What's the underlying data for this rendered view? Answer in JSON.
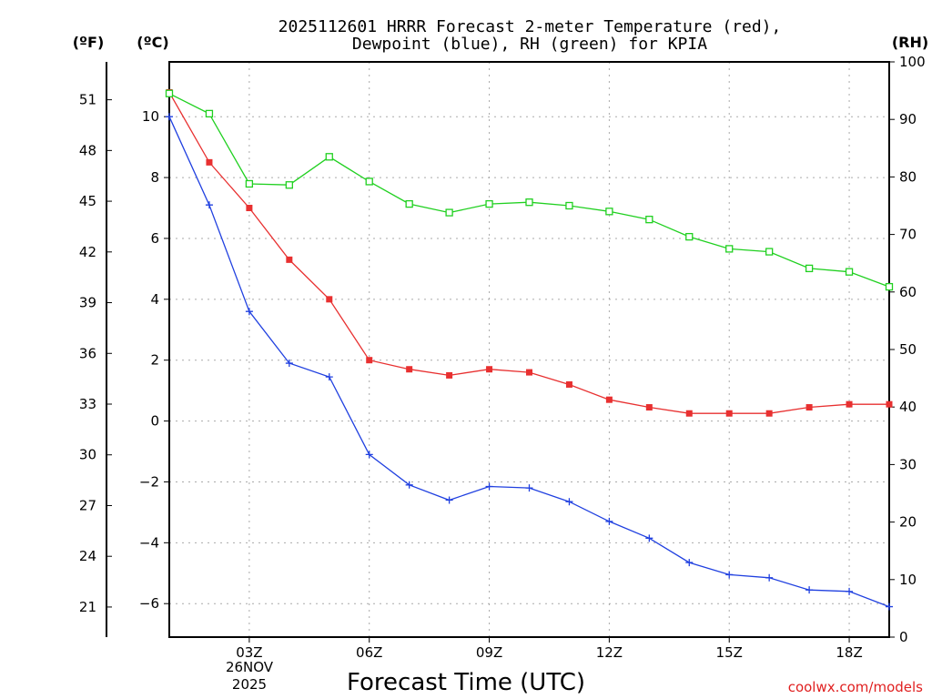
{
  "chart_data": {
    "type": "line",
    "title_line1": "2025112601 HRRR Forecast 2-meter Temperature (red),",
    "title_line2": "Dewpoint (blue), RH (green) for KPIA",
    "xlabel": "Forecast Time (UTC)",
    "date_line1": "26NOV",
    "date_line2": "2025",
    "credit": "coolwx.com/models",
    "units": {
      "fahrenheit": "(ºF)",
      "celsius": "(ºC)",
      "rh": "(RH)"
    },
    "x": [
      1,
      2,
      3,
      4,
      5,
      6,
      7,
      8,
      9,
      10,
      11,
      12,
      13,
      14,
      15,
      16,
      17,
      18,
      19
    ],
    "xlim": [
      1,
      19
    ],
    "x_ticks": [
      3,
      6,
      9,
      12,
      15,
      18
    ],
    "x_tick_labels": [
      "03Z",
      "06Z",
      "09Z",
      "12Z",
      "15Z",
      "18Z"
    ],
    "celsius_lim": [
      -7.1,
      11.8
    ],
    "celsius_ticks": [
      10,
      8,
      6,
      4,
      2,
      0,
      -2,
      -4,
      -6
    ],
    "celsius_tick_labels": [
      "10",
      "8",
      "6",
      "4",
      "2",
      "0",
      "−2",
      "−4",
      "−6"
    ],
    "fahrenheit_ticks": [
      51,
      48,
      45,
      42,
      39,
      36,
      33,
      30,
      27,
      24,
      21
    ],
    "fahrenheit_tick_labels": [
      "51",
      "48",
      "45",
      "42",
      "39",
      "36",
      "33",
      "30",
      "27",
      "24",
      "21"
    ],
    "rh_lim": [
      0,
      100
    ],
    "rh_ticks": [
      100,
      90,
      80,
      70,
      60,
      50,
      40,
      30,
      20,
      10,
      0
    ],
    "rh_tick_labels": [
      "100",
      "90",
      "80",
      "70",
      "60",
      "50",
      "40",
      "30",
      "20",
      "10",
      "0"
    ],
    "series": [
      {
        "name": "Temperature",
        "axis": "celsius",
        "color": "#e83030",
        "marker": "filled-square",
        "values": [
          10.8,
          8.5,
          7.0,
          5.3,
          4.0,
          2.0,
          1.7,
          1.5,
          1.7,
          1.6,
          1.2,
          0.7,
          0.45,
          0.25,
          0.25,
          0.25,
          0.45,
          0.55,
          0.55
        ]
      },
      {
        "name": "Dewpoint",
        "axis": "celsius",
        "color": "#2040e0",
        "marker": "plus",
        "values": [
          10.0,
          7.1,
          3.6,
          1.9,
          1.45,
          -1.1,
          -2.1,
          -2.6,
          -2.15,
          -2.2,
          -2.65,
          -3.3,
          -3.85,
          -4.65,
          -5.05,
          -5.15,
          -5.55,
          -5.6,
          -6.1
        ]
      },
      {
        "name": "RH",
        "axis": "rh",
        "color": "#20d020",
        "marker": "open-square",
        "values": [
          94.5,
          91.0,
          78.8,
          78.6,
          83.5,
          79.2,
          75.3,
          73.8,
          75.3,
          75.6,
          75.0,
          74.0,
          72.6,
          69.6,
          67.5,
          67.0,
          64.1,
          63.5,
          60.9
        ]
      }
    ]
  }
}
